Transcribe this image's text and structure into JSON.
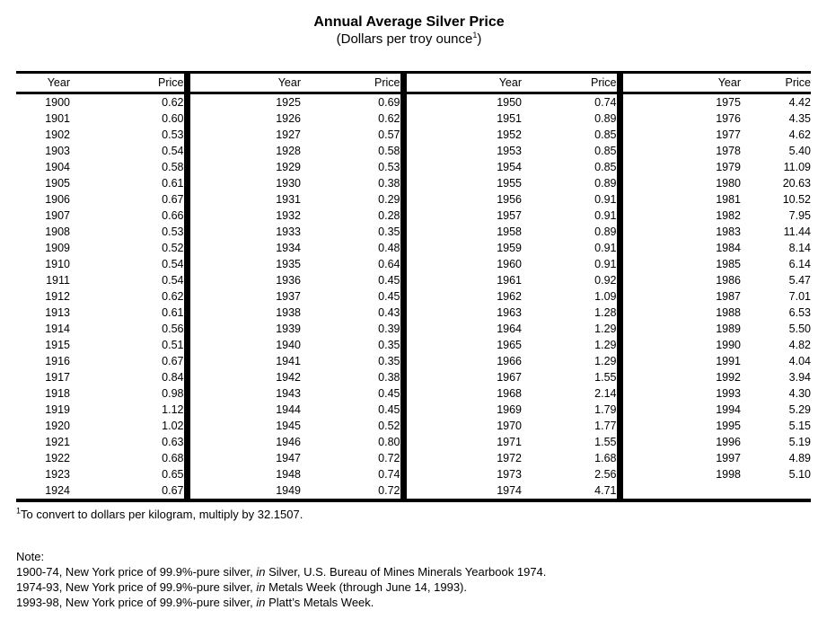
{
  "title": "Annual Average Silver Price",
  "subtitle": {
    "text": "(Dollars per troy ounce",
    "superscript": "1",
    "suffix": ")"
  },
  "table": {
    "header": {
      "year": "Year",
      "price": "Price"
    },
    "sections": [
      {
        "rows": [
          [
            "1900",
            "0.62"
          ],
          [
            "1901",
            "0.60"
          ],
          [
            "1902",
            "0.53"
          ],
          [
            "1903",
            "0.54"
          ],
          [
            "1904",
            "0.58"
          ],
          [
            "1905",
            "0.61"
          ],
          [
            "1906",
            "0.67"
          ],
          [
            "1907",
            "0.66"
          ],
          [
            "1908",
            "0.53"
          ],
          [
            "1909",
            "0.52"
          ],
          [
            "1910",
            "0.54"
          ],
          [
            "1911",
            "0.54"
          ],
          [
            "1912",
            "0.62"
          ],
          [
            "1913",
            "0.61"
          ],
          [
            "1914",
            "0.56"
          ],
          [
            "1915",
            "0.51"
          ],
          [
            "1916",
            "0.67"
          ],
          [
            "1917",
            "0.84"
          ],
          [
            "1918",
            "0.98"
          ],
          [
            "1919",
            "1.12"
          ],
          [
            "1920",
            "1.02"
          ],
          [
            "1921",
            "0.63"
          ],
          [
            "1922",
            "0.68"
          ],
          [
            "1923",
            "0.65"
          ],
          [
            "1924",
            "0.67"
          ]
        ]
      },
      {
        "rows": [
          [
            "1925",
            "0.69"
          ],
          [
            "1926",
            "0.62"
          ],
          [
            "1927",
            "0.57"
          ],
          [
            "1928",
            "0.58"
          ],
          [
            "1929",
            "0.53"
          ],
          [
            "1930",
            "0.38"
          ],
          [
            "1931",
            "0.29"
          ],
          [
            "1932",
            "0.28"
          ],
          [
            "1933",
            "0.35"
          ],
          [
            "1934",
            "0.48"
          ],
          [
            "1935",
            "0.64"
          ],
          [
            "1936",
            "0.45"
          ],
          [
            "1937",
            "0.45"
          ],
          [
            "1938",
            "0.43"
          ],
          [
            "1939",
            "0.39"
          ],
          [
            "1940",
            "0.35"
          ],
          [
            "1941",
            "0.35"
          ],
          [
            "1942",
            "0.38"
          ],
          [
            "1943",
            "0.45"
          ],
          [
            "1944",
            "0.45"
          ],
          [
            "1945",
            "0.52"
          ],
          [
            "1946",
            "0.80"
          ],
          [
            "1947",
            "0.72"
          ],
          [
            "1948",
            "0.74"
          ],
          [
            "1949",
            "0.72"
          ]
        ]
      },
      {
        "rows": [
          [
            "1950",
            "0.74"
          ],
          [
            "1951",
            "0.89"
          ],
          [
            "1952",
            "0.85"
          ],
          [
            "1953",
            "0.85"
          ],
          [
            "1954",
            "0.85"
          ],
          [
            "1955",
            "0.89"
          ],
          [
            "1956",
            "0.91"
          ],
          [
            "1957",
            "0.91"
          ],
          [
            "1958",
            "0.89"
          ],
          [
            "1959",
            "0.91"
          ],
          [
            "1960",
            "0.91"
          ],
          [
            "1961",
            "0.92"
          ],
          [
            "1962",
            "1.09"
          ],
          [
            "1963",
            "1.28"
          ],
          [
            "1964",
            "1.29"
          ],
          [
            "1965",
            "1.29"
          ],
          [
            "1966",
            "1.29"
          ],
          [
            "1967",
            "1.55"
          ],
          [
            "1968",
            "2.14"
          ],
          [
            "1969",
            "1.79"
          ],
          [
            "1970",
            "1.77"
          ],
          [
            "1971",
            "1.55"
          ],
          [
            "1972",
            "1.68"
          ],
          [
            "1973",
            "2.56"
          ],
          [
            "1974",
            "4.71"
          ]
        ]
      },
      {
        "rows": [
          [
            "1975",
            "4.42"
          ],
          [
            "1976",
            "4.35"
          ],
          [
            "1977",
            "4.62"
          ],
          [
            "1978",
            "5.40"
          ],
          [
            "1979",
            "11.09"
          ],
          [
            "1980",
            "20.63"
          ],
          [
            "1981",
            "10.52"
          ],
          [
            "1982",
            "7.95"
          ],
          [
            "1983",
            "11.44"
          ],
          [
            "1984",
            "8.14"
          ],
          [
            "1985",
            "6.14"
          ],
          [
            "1986",
            "5.47"
          ],
          [
            "1987",
            "7.01"
          ],
          [
            "1988",
            "6.53"
          ],
          [
            "1989",
            "5.50"
          ],
          [
            "1990",
            "4.82"
          ],
          [
            "1991",
            "4.04"
          ],
          [
            "1992",
            "3.94"
          ],
          [
            "1993",
            "4.30"
          ],
          [
            "1994",
            "5.29"
          ],
          [
            "1995",
            "5.15"
          ],
          [
            "1996",
            "5.19"
          ],
          [
            "1997",
            "4.89"
          ],
          [
            "1998",
            "5.10"
          ]
        ]
      }
    ]
  },
  "footnote": {
    "superscript": "1",
    "text": "To convert to dollars per kilogram, multiply by 32.1507."
  },
  "notes": {
    "label": "Note:",
    "items": [
      {
        "prefix": "1900-74, New York price of 99.9%-pure silver, ",
        "italic": "in",
        "suffix": " Silver, U.S. Bureau of Mines Minerals Yearbook 1974."
      },
      {
        "prefix": "1974-93, New York price of 99.9%-pure silver, ",
        "italic": "in",
        "suffix": " Metals Week (through June 14, 1993)."
      },
      {
        "prefix": "1993-98, New York price of 99.9%-pure silver, ",
        "italic": "in",
        "suffix": " Platt’s Metals Week."
      }
    ]
  },
  "colors": {
    "text": "#000000",
    "background": "#ffffff",
    "rule": "#000000"
  }
}
